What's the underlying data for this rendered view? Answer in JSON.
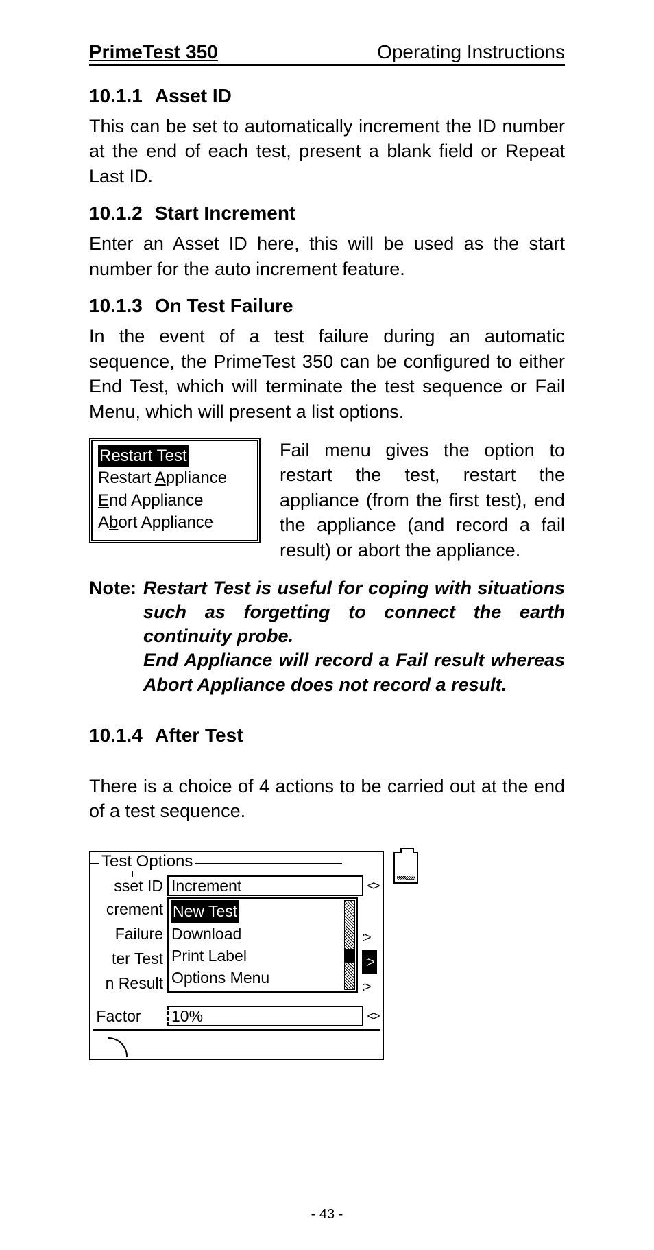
{
  "header": {
    "left": "PrimeTest 350",
    "right": "Operating Instructions"
  },
  "s1": {
    "num": "10.1.1",
    "title": "Asset ID",
    "body": "This can be set to automatically increment the ID number at the end of each test, present a blank field or Repeat Last ID."
  },
  "s2": {
    "num": "10.1.2",
    "title": "Start Increment",
    "body": "Enter an Asset ID here, this will be used as the start number for the auto increment feature."
  },
  "s3": {
    "num": "10.1.3",
    "title": "On Test Failure",
    "body": "In the event of a test failure during an automatic sequence, the PrimeTest 350 can be configured to either End Test, which will terminate the test sequence or Fail Menu, which will present a list options."
  },
  "fail_menu": {
    "items": [
      "Restart Test",
      "Restart Appliance",
      "End Appliance",
      "Abort Appliance"
    ],
    "underline_pos": [
      8,
      8,
      0,
      1
    ],
    "selected": 0,
    "side_text": "Fail menu gives the option to restart the test, restart the appliance (from the first test), end the appliance (and record a fail result) or abort the appliance."
  },
  "note": {
    "label": "Note:",
    "para1": "Restart Test is useful for coping with situations such as forgetting to connect the earth continuity probe.",
    "para2": "End Appliance will record a Fail result whereas Abort Appliance does not record a result."
  },
  "s4": {
    "num": "10.1.4",
    "title": "After Test",
    "body": "There is a choice of 4 actions to be carried out at the end of a test sequence."
  },
  "lcd": {
    "title": "Test Options",
    "rows": {
      "asset": {
        "label": "sset ID",
        "value": "Increment",
        "arrows": "<>"
      },
      "crement": {
        "label": "crement",
        "value": ""
      },
      "failure": {
        "label": "Failure",
        "value": ""
      },
      "test": {
        "label": "ter Test",
        "value": ""
      },
      "result": {
        "label": "n Result",
        "value": ""
      },
      "factor": {
        "label": "Factor",
        "value": "10%",
        "arrows": "<>"
      }
    },
    "dropdown": {
      "items": [
        "New Test",
        "Download",
        "Print Label",
        "Options Menu"
      ],
      "selected": 0
    }
  },
  "page_number": "- 43 -",
  "colors": {
    "text": "#000000",
    "bg": "#ffffff"
  }
}
